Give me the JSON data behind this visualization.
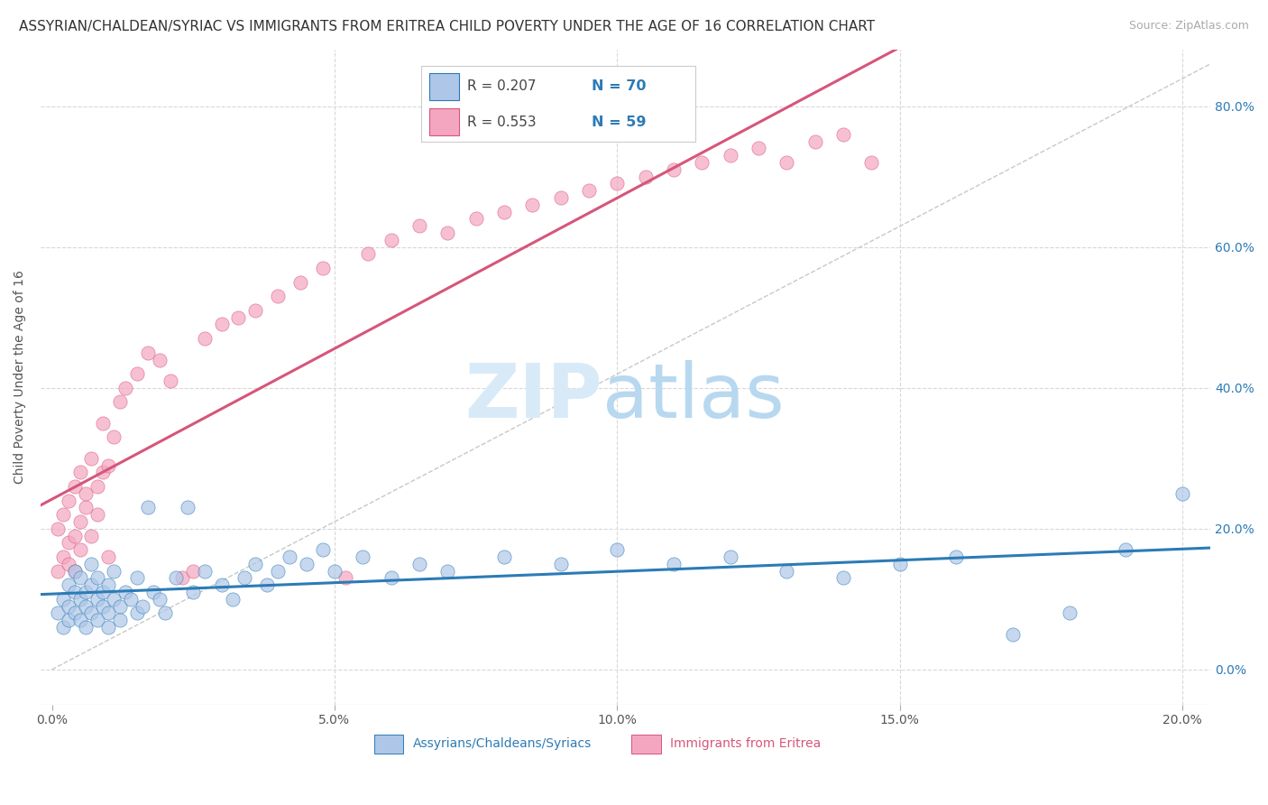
{
  "title": "ASSYRIAN/CHALDEAN/SYRIAC VS IMMIGRANTS FROM ERITREA CHILD POVERTY UNDER THE AGE OF 16 CORRELATION CHART",
  "source": "Source: ZipAtlas.com",
  "ylabel": "Child Poverty Under the Age of 16",
  "xlabel_ticks": [
    "0.0%",
    "5.0%",
    "10.0%",
    "15.0%",
    "20.0%"
  ],
  "ylabel_ticks_right": [
    "0.0%",
    "20.0%",
    "40.0%",
    "60.0%",
    "80.0%"
  ],
  "xlim": [
    -0.002,
    0.205
  ],
  "ylim": [
    -0.05,
    0.88
  ],
  "R_blue": "R = 0.207",
  "N_blue": "N = 70",
  "R_pink": "R = 0.553",
  "N_pink": "N = 59",
  "color_blue": "#aec6e8",
  "color_pink": "#f4a6c0",
  "line_blue": "#2c7bb6",
  "line_pink": "#d6567a",
  "line_dashed_color": "#c8c8c8",
  "title_fontsize": 11,
  "source_fontsize": 9,
  "axis_label_fontsize": 10,
  "tick_fontsize": 10,
  "legend_fontsize": 11,
  "legend_label_blue": "Assyrians/Chaldeans/Syriacs",
  "legend_label_pink": "Immigrants from Eritrea",
  "watermark_ZIP_color": "#d8eaf8",
  "watermark_atlas_color": "#b8d8f0",
  "watermark_fontsize": 60,
  "background_color": "#ffffff",
  "grid_color": "#d8d8d8",
  "blue_x": [
    0.001,
    0.002,
    0.002,
    0.003,
    0.003,
    0.003,
    0.004,
    0.004,
    0.004,
    0.005,
    0.005,
    0.005,
    0.006,
    0.006,
    0.006,
    0.007,
    0.007,
    0.007,
    0.008,
    0.008,
    0.008,
    0.009,
    0.009,
    0.01,
    0.01,
    0.01,
    0.011,
    0.011,
    0.012,
    0.012,
    0.013,
    0.014,
    0.015,
    0.015,
    0.016,
    0.017,
    0.018,
    0.019,
    0.02,
    0.022,
    0.024,
    0.025,
    0.027,
    0.03,
    0.032,
    0.034,
    0.036,
    0.038,
    0.04,
    0.042,
    0.045,
    0.048,
    0.05,
    0.055,
    0.06,
    0.065,
    0.07,
    0.08,
    0.09,
    0.1,
    0.11,
    0.12,
    0.13,
    0.14,
    0.15,
    0.16,
    0.17,
    0.18,
    0.19,
    0.2
  ],
  "blue_y": [
    0.08,
    0.1,
    0.06,
    0.09,
    0.12,
    0.07,
    0.11,
    0.08,
    0.14,
    0.1,
    0.07,
    0.13,
    0.09,
    0.11,
    0.06,
    0.12,
    0.08,
    0.15,
    0.1,
    0.07,
    0.13,
    0.09,
    0.11,
    0.08,
    0.12,
    0.06,
    0.1,
    0.14,
    0.09,
    0.07,
    0.11,
    0.1,
    0.13,
    0.08,
    0.09,
    0.23,
    0.11,
    0.1,
    0.08,
    0.13,
    0.23,
    0.11,
    0.14,
    0.12,
    0.1,
    0.13,
    0.15,
    0.12,
    0.14,
    0.16,
    0.15,
    0.17,
    0.14,
    0.16,
    0.13,
    0.15,
    0.14,
    0.16,
    0.15,
    0.17,
    0.15,
    0.16,
    0.14,
    0.13,
    0.15,
    0.16,
    0.05,
    0.08,
    0.17,
    0.25
  ],
  "pink_x": [
    0.001,
    0.001,
    0.002,
    0.002,
    0.003,
    0.003,
    0.003,
    0.004,
    0.004,
    0.004,
    0.005,
    0.005,
    0.005,
    0.006,
    0.006,
    0.007,
    0.007,
    0.008,
    0.008,
    0.009,
    0.009,
    0.01,
    0.01,
    0.011,
    0.012,
    0.013,
    0.015,
    0.017,
    0.019,
    0.021,
    0.023,
    0.025,
    0.027,
    0.03,
    0.033,
    0.036,
    0.04,
    0.044,
    0.048,
    0.052,
    0.056,
    0.06,
    0.065,
    0.07,
    0.075,
    0.08,
    0.085,
    0.09,
    0.095,
    0.1,
    0.105,
    0.11,
    0.115,
    0.12,
    0.125,
    0.13,
    0.135,
    0.14,
    0.145
  ],
  "pink_y": [
    0.14,
    0.2,
    0.16,
    0.22,
    0.18,
    0.24,
    0.15,
    0.19,
    0.26,
    0.14,
    0.21,
    0.17,
    0.28,
    0.23,
    0.25,
    0.19,
    0.3,
    0.26,
    0.22,
    0.28,
    0.35,
    0.16,
    0.29,
    0.33,
    0.38,
    0.4,
    0.42,
    0.45,
    0.44,
    0.41,
    0.13,
    0.14,
    0.47,
    0.49,
    0.5,
    0.51,
    0.53,
    0.55,
    0.57,
    0.13,
    0.59,
    0.61,
    0.63,
    0.62,
    0.64,
    0.65,
    0.66,
    0.67,
    0.68,
    0.69,
    0.7,
    0.71,
    0.72,
    0.73,
    0.74,
    0.72,
    0.75,
    0.76,
    0.72
  ]
}
